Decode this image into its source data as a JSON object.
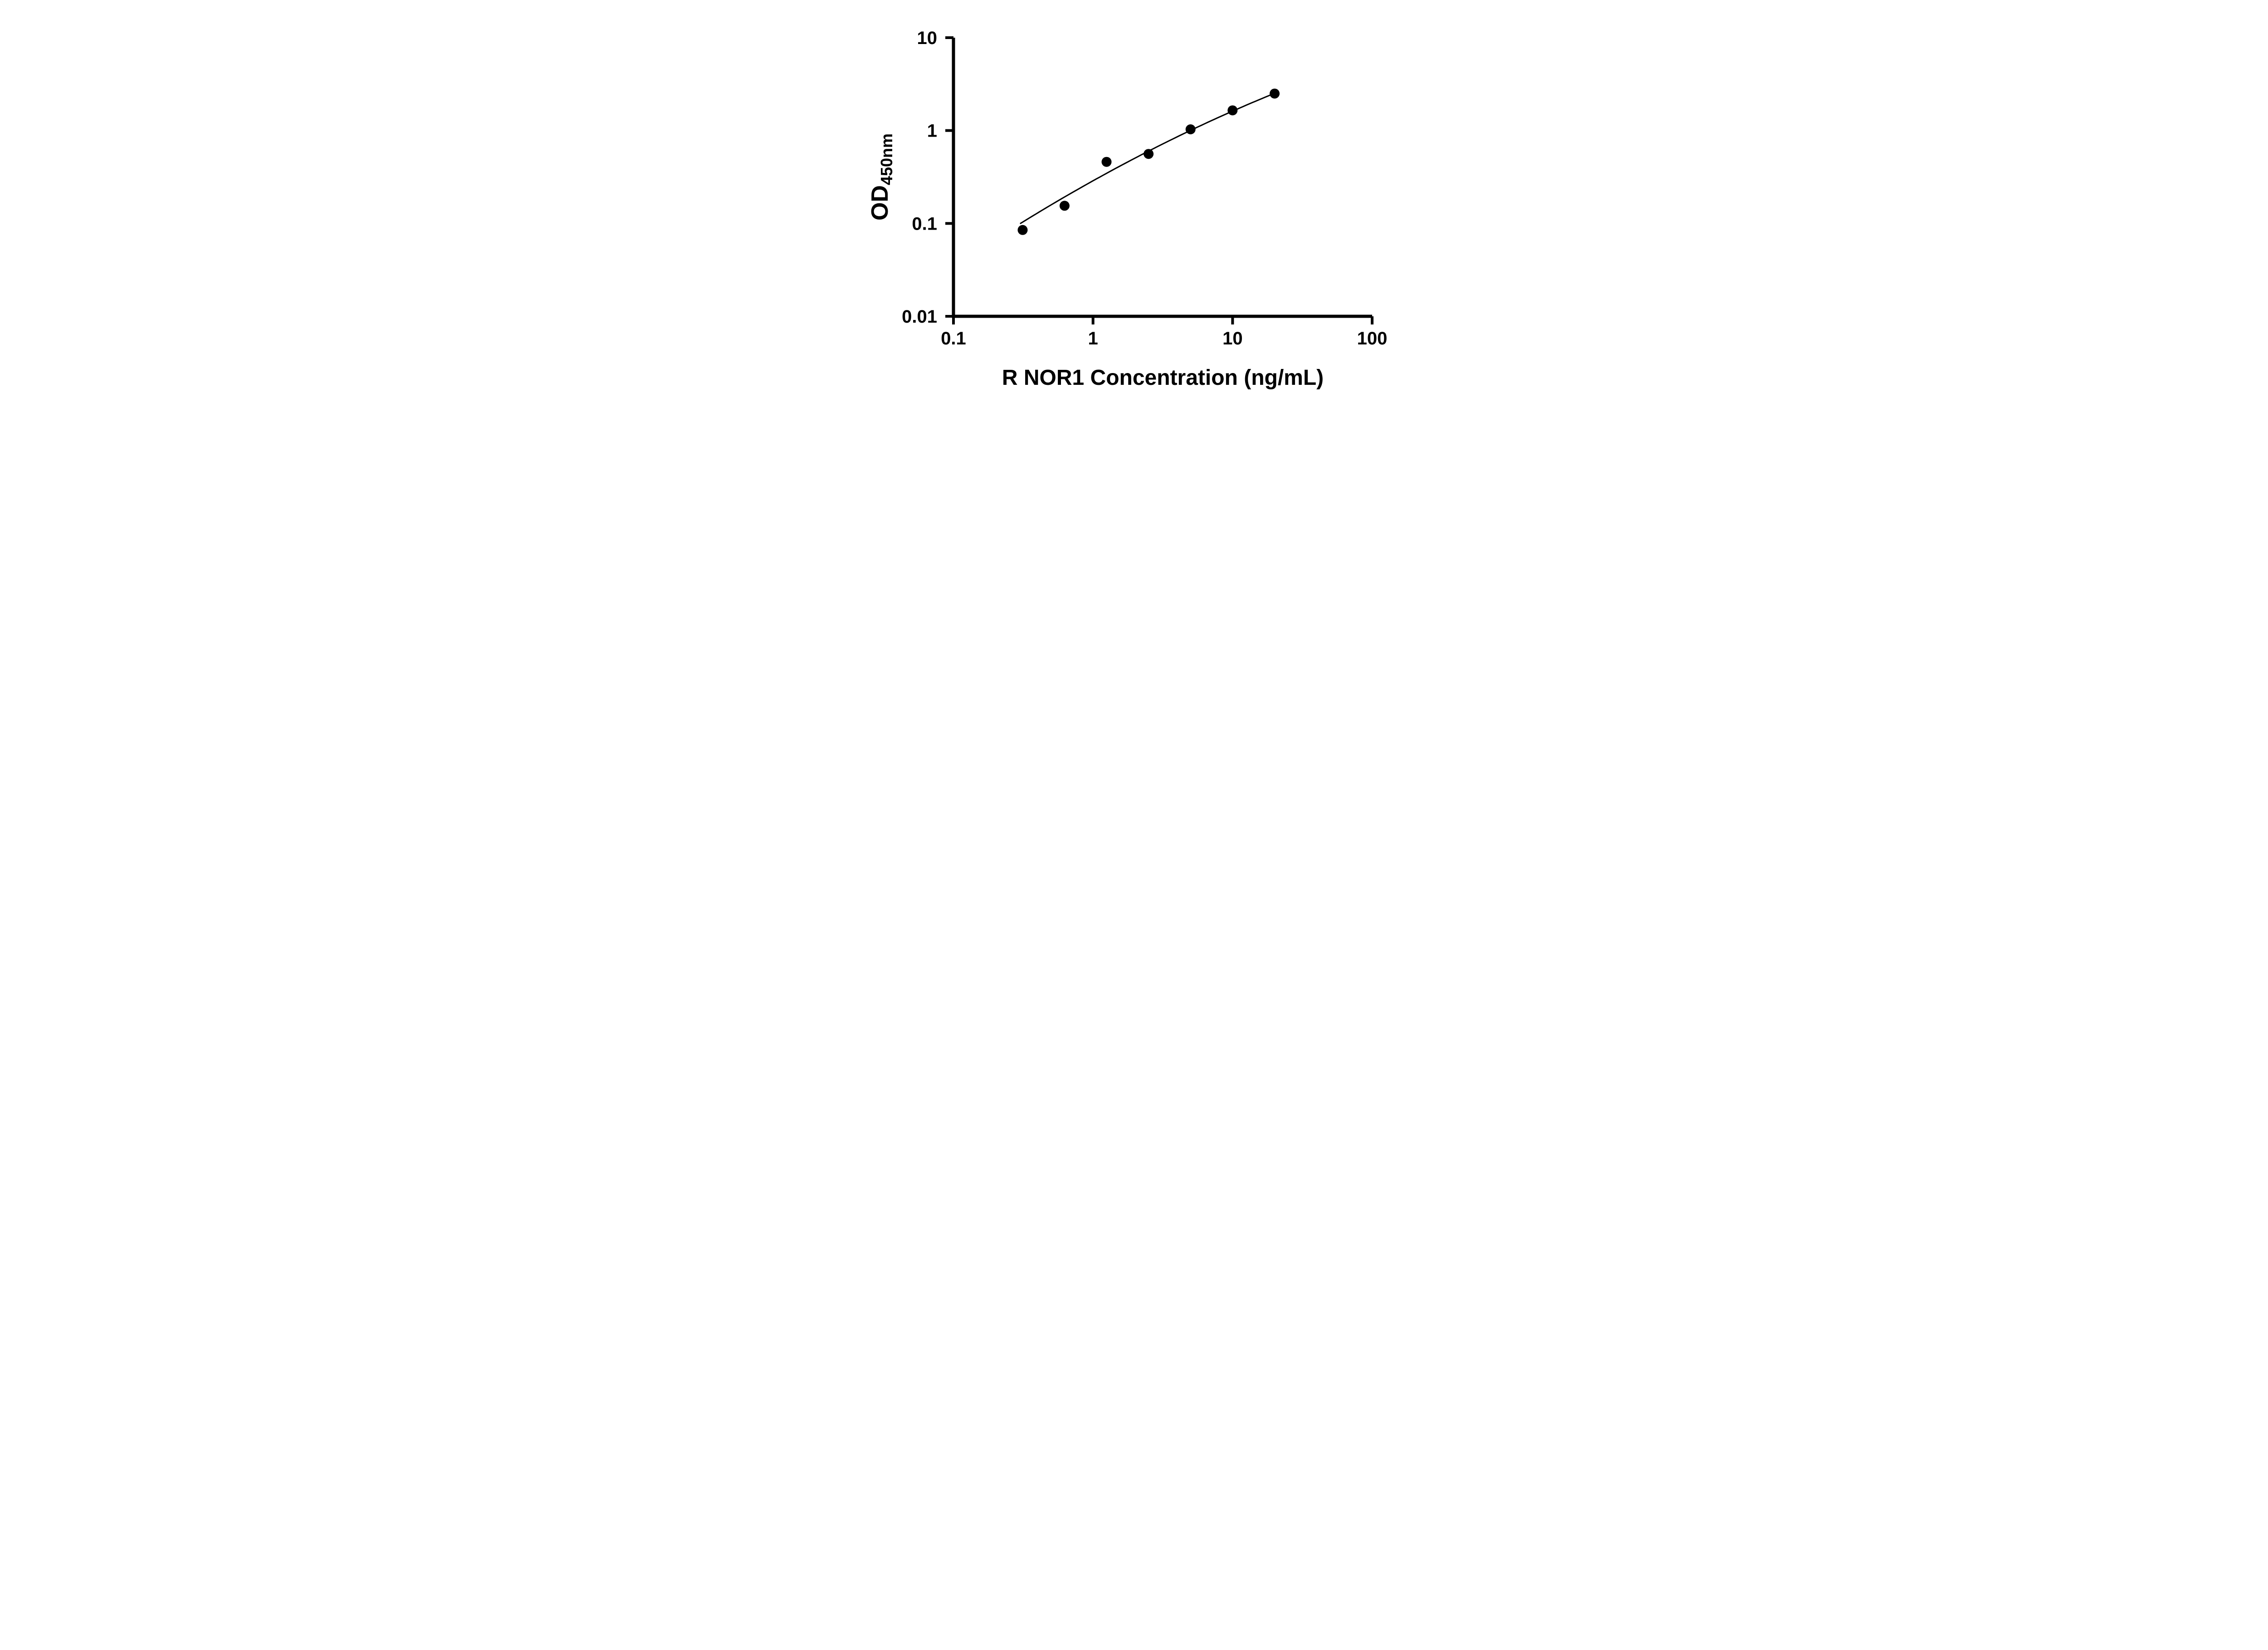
{
  "figure": {
    "background_color": "#ffffff",
    "foreground_color": "#000000"
  },
  "chart_data": {
    "type": "scatter",
    "title": "",
    "xlabel": "R NOR1 Concentration (ng/mL)",
    "ylabel": "OD",
    "ylabel_subscript": "450nm",
    "x_scale": "log",
    "y_scale": "log",
    "xlim": [
      0.1,
      100
    ],
    "ylim": [
      0.01,
      10
    ],
    "x_ticks": [
      0.1,
      1,
      10,
      100
    ],
    "x_tick_labels": [
      "0.1",
      "1",
      "10",
      "100"
    ],
    "y_ticks": [
      0.01,
      0.1,
      1,
      10
    ],
    "y_tick_labels": [
      "0.01",
      "0.1",
      "1",
      "10"
    ],
    "grid": false,
    "legend": false,
    "marker_color": "#000000",
    "line_color": "#000000",
    "axis_color": "#000000",
    "series": [
      {
        "name": "standard-curve-points",
        "x": [
          0.313,
          0.625,
          1.25,
          2.5,
          5,
          10,
          20
        ],
        "y": [
          0.085,
          0.155,
          0.46,
          0.56,
          1.03,
          1.65,
          2.5
        ]
      }
    ],
    "fit_curve": {
      "model": "quadratic-in-log10-log10",
      "coeffs": [
        -0.541,
        0.8374,
        -0.0873
      ],
      "x_range": [
        0.3,
        20
      ]
    }
  }
}
